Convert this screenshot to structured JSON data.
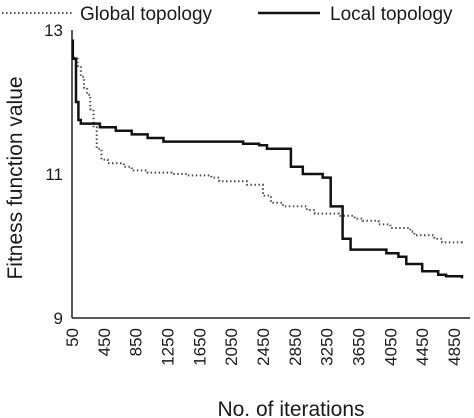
{
  "chart_data": {
    "type": "line",
    "xlabel": "No. of iterations",
    "ylabel": "Fitness  function value",
    "ylim": [
      9,
      13
    ],
    "xlim": [
      50,
      5050
    ],
    "yticks": [
      "9",
      "11",
      "13"
    ],
    "xticks": [
      "50",
      "450",
      "850",
      "1250",
      "1650",
      "2050",
      "2450",
      "2850",
      "3250",
      "3650",
      "4050",
      "4450",
      "4850"
    ],
    "xtick_values": [
      50,
      450,
      850,
      1250,
      1650,
      2050,
      2450,
      2850,
      3250,
      3650,
      4050,
      4450,
      4850
    ],
    "legend_position": "top",
    "grid": false,
    "series": [
      {
        "name": "Global topology",
        "style": "dotted",
        "color": "#4d4d4d",
        "x": [
          50,
          80,
          120,
          160,
          200,
          240,
          280,
          320,
          360,
          420,
          500,
          700,
          800,
          1000,
          1300,
          1500,
          1800,
          1900,
          2250,
          2450,
          2550,
          2700,
          3000,
          3100,
          3400,
          3600,
          3700,
          3900,
          4050,
          4300,
          4350,
          4600,
          4700,
          4950
        ],
        "y": [
          12.65,
          12.6,
          12.5,
          12.35,
          12.2,
          12.1,
          11.9,
          11.65,
          11.35,
          11.2,
          11.15,
          11.1,
          11.05,
          11.02,
          11.0,
          10.98,
          10.95,
          10.9,
          10.85,
          10.7,
          10.6,
          10.55,
          10.5,
          10.45,
          10.42,
          10.38,
          10.35,
          10.3,
          10.25,
          10.2,
          10.15,
          10.1,
          10.05,
          10.02
        ]
      },
      {
        "name": "Local topology",
        "style": "solid",
        "color": "#111111",
        "x": [
          50,
          60,
          100,
          130,
          160,
          400,
          600,
          800,
          1000,
          1200,
          1500,
          1800,
          2000,
          2200,
          2400,
          2500,
          2700,
          2800,
          2950,
          3200,
          3300,
          3450,
          3550,
          3700,
          4000,
          4150,
          4250,
          4450,
          4650,
          4750,
          4950
        ],
        "y": [
          12.85,
          12.6,
          12.0,
          11.75,
          11.7,
          11.65,
          11.6,
          11.55,
          11.5,
          11.45,
          11.45,
          11.45,
          11.45,
          11.42,
          11.4,
          11.35,
          11.35,
          11.1,
          11.0,
          10.95,
          10.55,
          10.1,
          9.95,
          9.95,
          9.9,
          9.85,
          9.75,
          9.65,
          9.6,
          9.58,
          9.55
        ]
      }
    ]
  }
}
